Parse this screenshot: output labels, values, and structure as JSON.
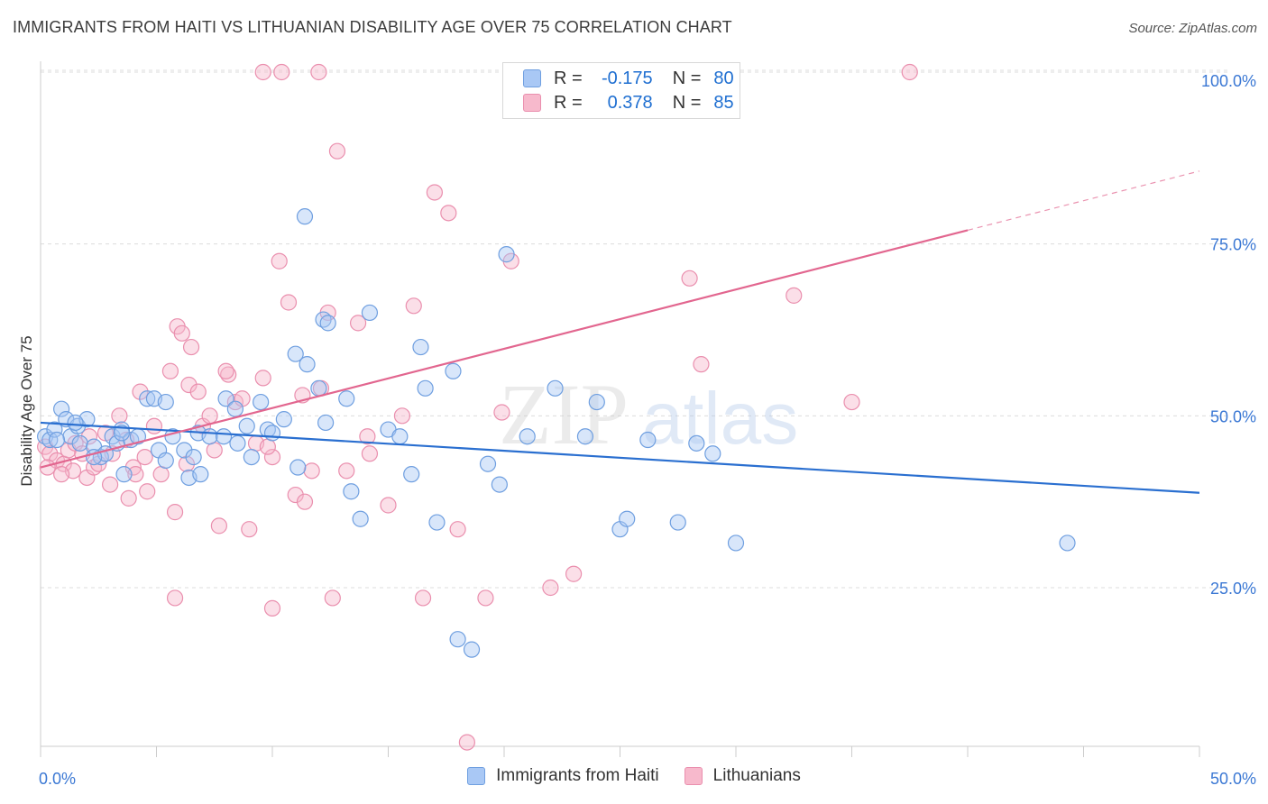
{
  "header": {
    "title": "IMMIGRANTS FROM HAITI VS LITHUANIAN DISABILITY AGE OVER 75 CORRELATION CHART",
    "source": "Source: ZipAtlas.com"
  },
  "legend": {
    "rows": [
      {
        "r_label": "R =",
        "r_value": "-0.175",
        "n_label": "N =",
        "n_value": "80"
      },
      {
        "r_label": "R =",
        "r_value": "0.378",
        "n_label": "N =",
        "n_value": "85"
      }
    ]
  },
  "bottom_legend": [
    "Immigrants from Haiti",
    "Lithuanians"
  ],
  "watermark": {
    "zip": "ZIP",
    "atlas": "atlas"
  },
  "colors": {
    "blue_fill": "#a9c8f5",
    "blue_stroke": "#6f9fe0",
    "blue_line": "#2a6fd0",
    "pink_fill": "#f7b9cc",
    "pink_stroke": "#ea8fae",
    "pink_line": "#e2668f",
    "tick_label": "#3b78d4"
  },
  "chart_data": {
    "type": "scatter",
    "title": "IMMIGRANTS FROM HAITI VS LITHUANIAN DISABILITY AGE OVER 75 CORRELATION CHART",
    "xlabel": "",
    "ylabel": "Disability Age Over 75",
    "xlim": [
      0,
      50
    ],
    "ylim": [
      0,
      105
    ],
    "x_tick_labels": [
      "0.0%",
      "50.0%"
    ],
    "y_tick_labels": [
      "25.0%",
      "50.0%",
      "75.0%",
      "100.0%"
    ],
    "y_ticks": [
      25,
      50,
      75,
      100
    ],
    "grid": true,
    "legend_position": "top-center",
    "series": [
      {
        "name": "Immigrants from Haiti",
        "r": -0.175,
        "n": 80,
        "trend": {
          "x": [
            0,
            50
          ],
          "y": [
            49.0,
            38.8
          ],
          "style": "solid"
        },
        "points": [
          [
            0.2,
            47.0
          ],
          [
            0.4,
            46.5
          ],
          [
            0.6,
            48.0
          ],
          [
            0.9,
            51.0
          ],
          [
            1.1,
            49.5
          ],
          [
            1.3,
            47.0
          ],
          [
            1.6,
            48.5
          ],
          [
            1.7,
            46.0
          ],
          [
            2.0,
            49.5
          ],
          [
            2.3,
            45.5
          ],
          [
            2.6,
            44.0
          ],
          [
            2.8,
            44.5
          ],
          [
            3.1,
            47.0
          ],
          [
            3.3,
            46.0
          ],
          [
            3.5,
            48.0
          ],
          [
            3.6,
            41.5
          ],
          [
            3.9,
            46.5
          ],
          [
            4.2,
            47.0
          ],
          [
            4.6,
            52.5
          ],
          [
            4.9,
            52.5
          ],
          [
            5.1,
            45.0
          ],
          [
            5.4,
            43.5
          ],
          [
            5.7,
            47.0
          ],
          [
            6.2,
            45.0
          ],
          [
            6.4,
            41.0
          ],
          [
            6.6,
            44.0
          ],
          [
            6.8,
            47.5
          ],
          [
            7.3,
            47.0
          ],
          [
            8.0,
            52.5
          ],
          [
            8.4,
            51.0
          ],
          [
            8.9,
            48.5
          ],
          [
            9.5,
            52.0
          ],
          [
            9.8,
            48.0
          ],
          [
            10.5,
            49.5
          ],
          [
            11.1,
            42.5
          ],
          [
            11.5,
            57.5
          ],
          [
            12.0,
            54.0
          ],
          [
            12.3,
            49.0
          ],
          [
            13.2,
            52.5
          ],
          [
            13.4,
            39.0
          ],
          [
            13.8,
            35.0
          ],
          [
            14.2,
            65.0
          ],
          [
            15.0,
            48.0
          ],
          [
            15.5,
            47.0
          ],
          [
            16.4,
            60.0
          ],
          [
            16.0,
            41.5
          ],
          [
            16.6,
            54.0
          ],
          [
            17.1,
            34.5
          ],
          [
            17.8,
            56.5
          ],
          [
            18.0,
            17.5
          ],
          [
            18.6,
            16.0
          ],
          [
            19.3,
            43.0
          ],
          [
            19.8,
            40.0
          ],
          [
            20.1,
            73.5
          ],
          [
            21.0,
            47.0
          ],
          [
            22.2,
            54.0
          ],
          [
            23.5,
            47.0
          ],
          [
            24.0,
            52.0
          ],
          [
            25.0,
            33.5
          ],
          [
            25.3,
            35.0
          ],
          [
            26.2,
            46.5
          ],
          [
            27.5,
            34.5
          ],
          [
            28.3,
            46.0
          ],
          [
            29.0,
            44.5
          ],
          [
            30.0,
            31.5
          ],
          [
            44.3,
            31.5
          ],
          [
            12.2,
            64.0
          ],
          [
            11.0,
            59.0
          ],
          [
            12.4,
            63.5
          ],
          [
            8.5,
            46.0
          ],
          [
            9.1,
            44.0
          ],
          [
            10.0,
            47.5
          ],
          [
            6.9,
            41.5
          ],
          [
            5.4,
            52.0
          ],
          [
            3.5,
            47.5
          ],
          [
            2.3,
            44.0
          ],
          [
            1.5,
            49.0
          ],
          [
            0.7,
            46.5
          ],
          [
            11.4,
            79.0
          ],
          [
            7.9,
            47.0
          ]
        ]
      },
      {
        "name": "Lithuanians",
        "r": 0.378,
        "n": 85,
        "trend": {
          "x": [
            0,
            40
          ],
          "y": [
            42.5,
            77.0
          ],
          "x_dashed_to": 50,
          "y_dashed_to": 85.6,
          "style": "solid-then-dashed"
        },
        "points": [
          [
            0.2,
            45.5
          ],
          [
            0.4,
            44.5
          ],
          [
            0.7,
            43.5
          ],
          [
            1.0,
            43.0
          ],
          [
            1.2,
            45.0
          ],
          [
            1.5,
            46.0
          ],
          [
            1.8,
            44.5
          ],
          [
            2.0,
            41.0
          ],
          [
            2.3,
            42.5
          ],
          [
            2.5,
            43.0
          ],
          [
            2.8,
            47.5
          ],
          [
            3.1,
            44.5
          ],
          [
            3.4,
            50.0
          ],
          [
            3.7,
            46.5
          ],
          [
            4.0,
            42.5
          ],
          [
            4.3,
            53.5
          ],
          [
            4.5,
            44.0
          ],
          [
            4.9,
            48.5
          ],
          [
            5.2,
            41.5
          ],
          [
            5.6,
            56.5
          ],
          [
            5.9,
            63.0
          ],
          [
            6.1,
            62.0
          ],
          [
            6.4,
            54.5
          ],
          [
            6.8,
            53.5
          ],
          [
            7.0,
            48.5
          ],
          [
            7.3,
            50.0
          ],
          [
            7.7,
            34.0
          ],
          [
            8.1,
            56.0
          ],
          [
            8.4,
            52.0
          ],
          [
            8.7,
            52.5
          ],
          [
            9.0,
            33.5
          ],
          [
            9.3,
            46.0
          ],
          [
            9.6,
            55.5
          ],
          [
            10.0,
            44.0
          ],
          [
            10.3,
            72.5
          ],
          [
            10.7,
            66.5
          ],
          [
            11.0,
            38.5
          ],
          [
            11.3,
            53.0
          ],
          [
            11.7,
            42.0
          ],
          [
            12.1,
            54.0
          ],
          [
            12.4,
            65.0
          ],
          [
            12.8,
            88.5
          ],
          [
            13.2,
            42.0
          ],
          [
            13.7,
            63.5
          ],
          [
            14.2,
            44.5
          ],
          [
            15.0,
            37.0
          ],
          [
            15.6,
            50.0
          ],
          [
            16.1,
            66.0
          ],
          [
            16.5,
            23.5
          ],
          [
            17.0,
            82.5
          ],
          [
            17.6,
            79.5
          ],
          [
            18.0,
            33.5
          ],
          [
            18.4,
            2.5
          ],
          [
            19.2,
            23.5
          ],
          [
            19.9,
            50.5
          ],
          [
            20.3,
            72.5
          ],
          [
            22.0,
            25.0
          ],
          [
            23.0,
            27.0
          ],
          [
            28.0,
            70.0
          ],
          [
            28.5,
            57.5
          ],
          [
            32.5,
            67.5
          ],
          [
            35.0,
            52.0
          ],
          [
            37.5,
            100.0
          ],
          [
            9.6,
            100.0
          ],
          [
            10.4,
            100.0
          ],
          [
            12.0,
            100.0
          ],
          [
            6.3,
            43.0
          ],
          [
            7.5,
            45.0
          ],
          [
            4.1,
            41.5
          ],
          [
            3.0,
            40.0
          ],
          [
            2.1,
            47.0
          ],
          [
            1.4,
            42.0
          ],
          [
            0.9,
            41.5
          ],
          [
            5.8,
            36.0
          ],
          [
            6.5,
            60.0
          ],
          [
            8.0,
            56.5
          ],
          [
            11.4,
            37.5
          ],
          [
            12.6,
            23.5
          ],
          [
            10.0,
            22.0
          ],
          [
            5.8,
            23.5
          ],
          [
            3.8,
            38.0
          ],
          [
            4.6,
            39.0
          ],
          [
            14.1,
            47.0
          ],
          [
            9.8,
            45.5
          ],
          [
            0.3,
            42.5
          ]
        ]
      }
    ]
  }
}
